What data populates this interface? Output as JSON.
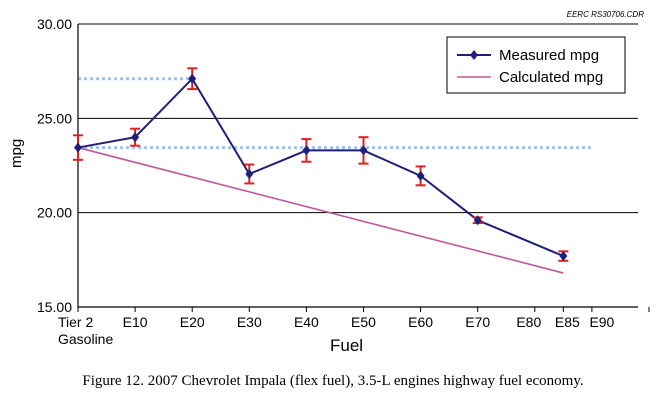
{
  "source_tag": "EERC RS30706.CDR",
  "caption": "Figure 12. 2007 Chevrolet Impala (flex fuel), 3.5-L engines highway fuel economy.",
  "colors": {
    "measured": "#1f1f7a",
    "calculated": "#c0579a",
    "error_bars": "#e02020",
    "reference_lines": "#9ec3ee",
    "axis": "#000000"
  },
  "chart_data": {
    "type": "line",
    "title": "",
    "xlabel": "Fuel",
    "ylabel": "mpg",
    "ylim": [
      15,
      30
    ],
    "yticks": [
      "15.00",
      "20.00",
      "25.00",
      "30.00"
    ],
    "grid": true,
    "legend_position": "top-right",
    "categories": [
      "Tier 2 Gasoline",
      "E10",
      "E20",
      "E30",
      "E40",
      "E50",
      "E60",
      "E70",
      "E80",
      "E85",
      "E90"
    ],
    "tick_labels": [
      {
        "line1": "Tier 2",
        "line2": "Gasoline"
      },
      {
        "line1": "E10",
        "line2": ""
      },
      {
        "line1": "E20",
        "line2": ""
      },
      {
        "line1": "E30",
        "line2": ""
      },
      {
        "line1": "E40",
        "line2": ""
      },
      {
        "line1": "E50",
        "line2": ""
      },
      {
        "line1": "E60",
        "line2": ""
      },
      {
        "line1": "E70",
        "line2": ""
      },
      {
        "line1": "E80",
        "line2": ""
      },
      {
        "line1": "E85",
        "line2": ""
      },
      {
        "line1": "E90",
        "line2": ""
      }
    ],
    "series": [
      {
        "name": "Measured mpg",
        "x": [
          0,
          10,
          20,
          30,
          40,
          50,
          60,
          70,
          85
        ],
        "y": [
          23.45,
          24.0,
          27.1,
          22.05,
          23.3,
          23.3,
          21.95,
          19.6,
          17.7
        ],
        "error": [
          0.65,
          0.45,
          0.55,
          0.5,
          0.6,
          0.7,
          0.5,
          0.15,
          0.25
        ]
      },
      {
        "name": "Calculated mpg",
        "x": [
          0,
          85
        ],
        "y": [
          23.45,
          16.8
        ]
      }
    ],
    "reference_lines": [
      {
        "y": 27.1,
        "x_from": 0,
        "x_to": 20
      },
      {
        "y": 23.45,
        "x_from": 0,
        "x_to": 90
      }
    ]
  }
}
